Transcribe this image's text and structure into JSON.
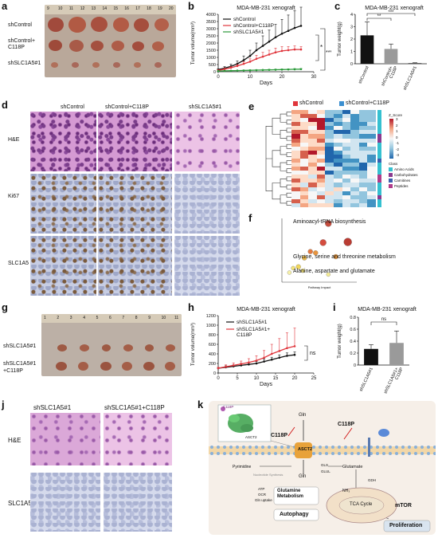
{
  "panels": {
    "a": {
      "label": "a",
      "ruler_ticks": [
        "9",
        "10",
        "11",
        "12",
        "13",
        "14",
        "15",
        "16",
        "17",
        "18",
        "19",
        "20"
      ],
      "groups": [
        "shControl",
        "shControl+\nC118P",
        "shSLC1A5#1"
      ]
    },
    "b": {
      "label": "b",
      "title": "MDA-MB-231 xenograft",
      "ylabel": "Tumor volume(mm³)",
      "xlabel": "Days",
      "legend": [
        "shControl",
        "shControl+C118P",
        "shSLC1A5#1"
      ],
      "sig": [
        "*",
        "***"
      ]
    },
    "c": {
      "label": "c",
      "title": "MDA-MB-231 xenograft",
      "ylabel": "Tumor weight(g)",
      "sig": [
        "**",
        "***"
      ],
      "categories": [
        "shControl",
        "shControl+\nC118P",
        "shSLC1A5#1"
      ]
    },
    "d": {
      "label": "d",
      "columns": [
        "shControl",
        "shControl+C118P",
        "shSLC1A5#1"
      ],
      "rows": [
        "H&E",
        "Ki67",
        "SLC1A5"
      ]
    },
    "e": {
      "label": "e",
      "legend": [
        "shControl",
        "shControl+C118P"
      ],
      "zscore_title": "Z_Score",
      "zscore_ticks": [
        "3",
        "2",
        "1",
        "0",
        "-1",
        "-2",
        "-3"
      ],
      "class_title": "Class",
      "classes": [
        "Amino Acids",
        "Carbohydrates",
        "Carnitines",
        "Peptides"
      ],
      "class_colors": [
        "#35c0d0",
        "#8a3a8f",
        "#3b5fb0",
        "#b03c8a"
      ]
    },
    "f": {
      "label": "f",
      "terms": [
        "Aminoacyl-tRNA biosynthesis",
        "Glycine, serine and threonine metabolism",
        "Alanine, aspartate and glutamate"
      ],
      "xlabel": "Pathway Impact"
    },
    "g": {
      "label": "g",
      "ruler_ticks": [
        "1",
        "2",
        "3",
        "4",
        "5",
        "6",
        "7",
        "8",
        "9",
        "10",
        "11"
      ],
      "groups": [
        "shSLC1A5#1",
        "shSLC1A5#1\n+C118P"
      ]
    },
    "h": {
      "label": "h",
      "title": "MDA-MB-231 xenograft",
      "ylabel": "Tumor volume(mm³)",
      "xlabel": "Days",
      "legend": [
        "shSLC1A5#1",
        "shSLC1A5#1+\nC118P"
      ],
      "sig": "ns"
    },
    "i": {
      "label": "i",
      "title": "MDA-MB-231 xenograft",
      "ylabel": "Tumor weight(g)",
      "sig": "ns",
      "categories": [
        "shSLC1A5#1",
        "shSLC1A5#1+\nC118P"
      ]
    },
    "j": {
      "label": "j",
      "columns": [
        "shSLC1A5#1",
        "shSLC1A5#1+C118P"
      ],
      "rows": [
        "H&E",
        "SLC1A5"
      ]
    },
    "k": {
      "label": "k",
      "labels": {
        "c118p_a": "C118P",
        "c118p_b": "C118P",
        "c118p_inset": "C118P",
        "asct2_inset": "ASCT2",
        "asct2": "ASCT2",
        "gln_a": "Gln",
        "gln_b": "Gln",
        "gln_c": "Gln",
        "gls": "GLS",
        "glul": "GLUL",
        "glutamate": "Glutamate",
        "gdh": "GDH",
        "nh3": "NH₃",
        "tca": "TCA Cycle",
        "mtor": "mTOR",
        "pyrimidine": "Pyrimidine",
        "nucleotide": "Nucleotide Synthesis",
        "atp": "ATP",
        "ocr": "OCR",
        "gln_uptake": "Gln uptake",
        "glutamine_metabolism": "Glutamine Metabolism",
        "autophagy": "Autophagy",
        "proliferation": "Proliferation"
      }
    }
  },
  "chart_data": [
    {
      "type": "line",
      "panel": "b",
      "title": "MDA-MB-231 xenograft",
      "xlabel": "Days",
      "ylabel": "Tumor volume(mm³)",
      "xlim": [
        0,
        30
      ],
      "ylim": [
        0,
        4000
      ],
      "xticks": [
        0,
        10,
        20,
        30
      ],
      "yticks": [
        0,
        500,
        1000,
        1500,
        2000,
        2500,
        3000,
        3500,
        4000
      ],
      "series": [
        {
          "name": "shControl",
          "color": "#111111",
          "x": [
            0,
            2,
            4,
            6,
            8,
            10,
            12,
            14,
            16,
            18,
            20,
            22,
            24,
            26
          ],
          "y": [
            150,
            250,
            380,
            550,
            800,
            1100,
            1500,
            1800,
            2100,
            2400,
            2650,
            2850,
            3050,
            3200
          ],
          "err": [
            50,
            100,
            150,
            200,
            300,
            400,
            500,
            700,
            800,
            900,
            1000,
            1100,
            1200,
            1300
          ]
        },
        {
          "name": "shControl+C118P",
          "color": "#e0353c",
          "x": [
            0,
            2,
            4,
            6,
            8,
            10,
            12,
            14,
            16,
            18,
            20,
            22,
            24,
            26
          ],
          "y": [
            100,
            180,
            280,
            400,
            550,
            700,
            900,
            1050,
            1200,
            1350,
            1450,
            1500,
            1550,
            1550
          ],
          "err": [
            30,
            60,
            80,
            100,
            150,
            200,
            250,
            300,
            300,
            300,
            300,
            250,
            250,
            200
          ]
        },
        {
          "name": "shSLC1A5#1",
          "color": "#2a9a3a",
          "x": [
            0,
            2,
            4,
            6,
            8,
            10,
            12,
            14,
            16,
            18,
            20,
            22,
            24,
            26
          ],
          "y": [
            50,
            60,
            70,
            80,
            90,
            100,
            110,
            120,
            130,
            140,
            150,
            160,
            170,
            180
          ],
          "err": [
            10,
            20,
            20,
            20,
            30,
            30,
            30,
            30,
            40,
            40,
            40,
            40,
            50,
            50
          ]
        }
      ]
    },
    {
      "type": "bar",
      "panel": "c",
      "title": "MDA-MB-231 xenograft",
      "ylabel": "Tumor weight(g)",
      "categories": [
        "shControl",
        "shControl+\nC118P",
        "shSLC1A5#1"
      ],
      "values": [
        2.3,
        1.2,
        0.05
      ],
      "err": [
        1.1,
        0.4,
        0.03
      ],
      "colors": [
        "#111111",
        "#9a9a9a",
        "#333333"
      ],
      "ylim": [
        0,
        4
      ],
      "yticks": [
        0,
        1,
        2,
        3,
        4
      ]
    },
    {
      "type": "line",
      "panel": "h",
      "title": "MDA-MB-231 xenograft",
      "xlabel": "Days",
      "ylabel": "Tumor volume(mm³)",
      "xlim": [
        0,
        25
      ],
      "ylim": [
        0,
        1200
      ],
      "xticks": [
        0,
        5,
        10,
        15,
        20,
        25
      ],
      "yticks": [
        0,
        200,
        400,
        600,
        800,
        1000,
        1200
      ],
      "series": [
        {
          "name": "shSLC1A5#1",
          "color": "#111111",
          "x": [
            0,
            2,
            4,
            6,
            8,
            10,
            12,
            14,
            16,
            18,
            20
          ],
          "y": [
            100,
            120,
            140,
            160,
            180,
            200,
            240,
            280,
            320,
            360,
            380
          ],
          "err": [
            20,
            30,
            30,
            40,
            40,
            40,
            50,
            50,
            60,
            60,
            60
          ]
        },
        {
          "name": "shSLC1A5#1+C118P",
          "color": "#e0353c",
          "x": [
            0,
            2,
            4,
            6,
            8,
            10,
            12,
            14,
            16,
            18,
            20
          ],
          "y": [
            100,
            130,
            160,
            190,
            220,
            260,
            320,
            400,
            460,
            520,
            560
          ],
          "err": [
            20,
            40,
            50,
            60,
            80,
            100,
            150,
            200,
            260,
            320,
            380
          ]
        }
      ]
    },
    {
      "type": "bar",
      "panel": "i",
      "title": "MDA-MB-231 xenograft",
      "ylabel": "Tumor weight(g)",
      "categories": [
        "shSLC1A5#1",
        "shSLC1A5#1+\nC118P"
      ],
      "values": [
        0.27,
        0.37
      ],
      "err": [
        0.07,
        0.2
      ],
      "colors": [
        "#111111",
        "#9a9a9a"
      ],
      "ylim": [
        0,
        0.8
      ],
      "yticks": [
        0.0,
        0.2,
        0.4,
        0.6,
        0.8
      ]
    },
    {
      "type": "scatter",
      "panel": "f",
      "xlabel": "Pathway Impact",
      "points": [
        {
          "x": 0.62,
          "y": 0.92,
          "size": 4,
          "color": "#c23a2a"
        },
        {
          "x": 0.55,
          "y": 0.62,
          "size": 4,
          "color": "#d0392a"
        },
        {
          "x": 0.88,
          "y": 0.63,
          "size": 5,
          "color": "#b3281e"
        },
        {
          "x": 0.38,
          "y": 0.48,
          "size": 3,
          "color": "#e06a2a"
        },
        {
          "x": 0.45,
          "y": 0.46,
          "size": 3,
          "color": "#e68a2a"
        },
        {
          "x": 0.72,
          "y": 0.4,
          "size": 3,
          "color": "#e08a2a"
        },
        {
          "x": 0.3,
          "y": 0.38,
          "size": 3,
          "color": "#e8b23a"
        },
        {
          "x": 0.22,
          "y": 0.24,
          "size": 3,
          "color": "#f0d24a"
        },
        {
          "x": 0.15,
          "y": 0.22,
          "size": 2.5,
          "color": "#f2e06a"
        },
        {
          "x": 0.28,
          "y": 0.18,
          "size": 2.5,
          "color": "#f2e06a"
        },
        {
          "x": 0.62,
          "y": 0.12,
          "size": 2.5,
          "color": "#f5ea8a"
        },
        {
          "x": 0.1,
          "y": 0.15,
          "size": 2.5,
          "color": "#f7f0a0"
        }
      ]
    }
  ]
}
